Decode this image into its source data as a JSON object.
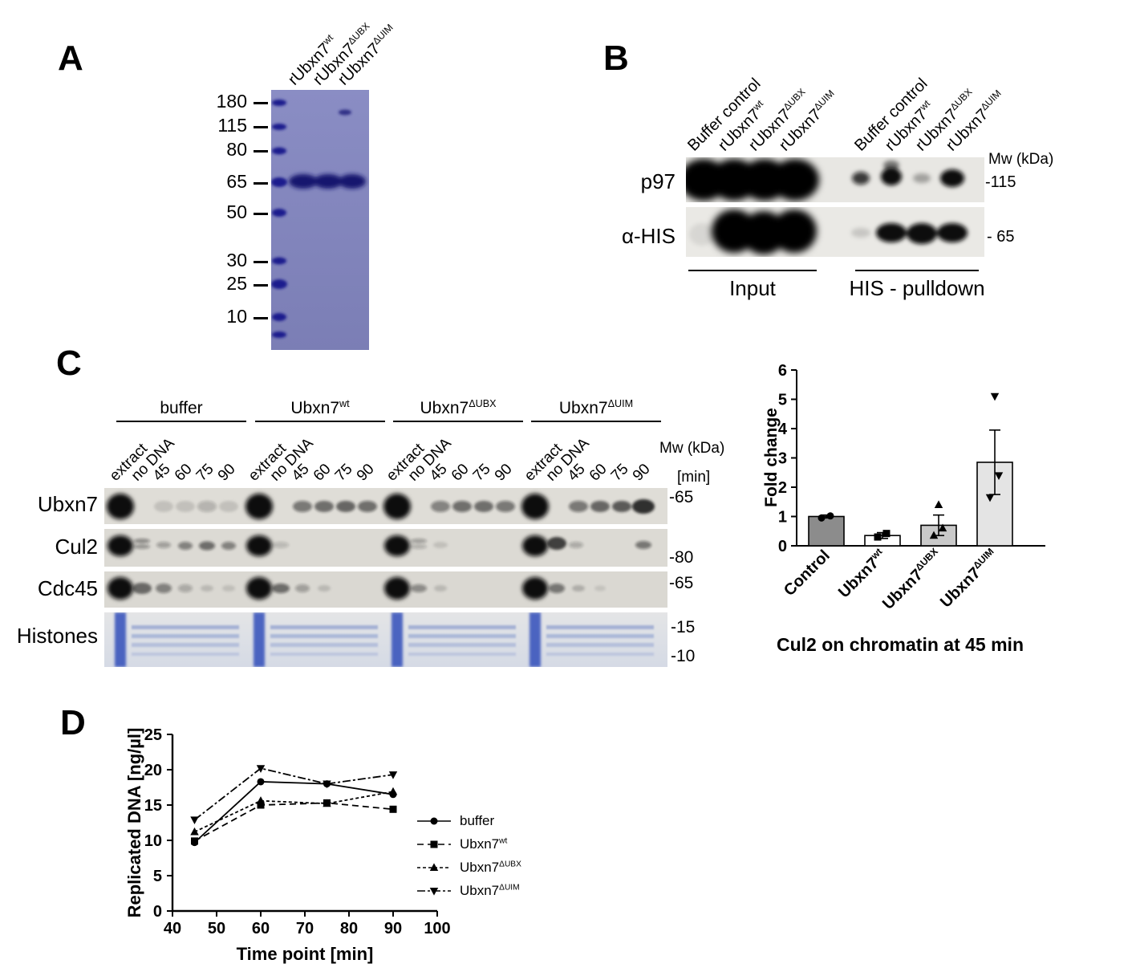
{
  "panelA": {
    "label": "A",
    "mw_markers": [
      "180",
      "115",
      "80",
      "65",
      "50",
      "30",
      "25",
      "10"
    ],
    "lanes": [
      {
        "base": "rUbxn7",
        "sup": "wt"
      },
      {
        "base": "rUbxn7",
        "sup": "ΔUBX"
      },
      {
        "base": "rUbxn7",
        "sup": "ΔUIM"
      }
    ]
  },
  "panelB": {
    "label": "B",
    "lanes": [
      {
        "base": "Buffer control",
        "sup": ""
      },
      {
        "base": "rUbxn7",
        "sup": "wt"
      },
      {
        "base": "rUbxn7",
        "sup": "ΔUBX"
      },
      {
        "base": "rUbxn7",
        "sup": "ΔUIM"
      },
      {
        "base": "Buffer control",
        "sup": ""
      },
      {
        "base": "rUbxn7",
        "sup": "wt"
      },
      {
        "base": "rUbxn7",
        "sup": "ΔUBX"
      },
      {
        "base": "rUbxn7",
        "sup": "ΔUIM"
      }
    ],
    "mw_title": "Mw (kDa)",
    "rows": [
      {
        "label": "p97",
        "mw": "-115"
      },
      {
        "label": "α-HIS",
        "mw": "- 65"
      }
    ],
    "sections": [
      "Input",
      "HIS - pulldown"
    ]
  },
  "panelC": {
    "label": "C",
    "groups": [
      {
        "base": "buffer",
        "sup": ""
      },
      {
        "base": "Ubxn7",
        "sup": "wt"
      },
      {
        "base": "Ubxn7",
        "sup": "ΔUBX"
      },
      {
        "base": "Ubxn7",
        "sup": "ΔUIM"
      }
    ],
    "lane_labels": [
      "extract",
      "no DNA",
      "45",
      "60",
      "75",
      "90"
    ],
    "mw_title": "Mw (kDa)",
    "min_label": "[min]",
    "rows": [
      {
        "label": "Ubxn7",
        "mws": [
          "-65"
        ]
      },
      {
        "label": "Cul2",
        "mws": [
          "-80"
        ]
      },
      {
        "label": "Cdc45",
        "mws": [
          "-65"
        ]
      },
      {
        "label": "Histones",
        "mws": [
          "-15",
          "-10"
        ]
      }
    ]
  },
  "chart_data": [
    {
      "type": "bar",
      "title": "Cul2 on chromatin at 45 min",
      "ylabel": "Fold change",
      "ylim": [
        0,
        6
      ],
      "yticks": [
        0,
        1,
        2,
        3,
        4,
        5,
        6
      ],
      "categories": [
        {
          "base": "Control",
          "sup": ""
        },
        {
          "base": "Ubxn7",
          "sup": "wt"
        },
        {
          "base": "Ubxn7",
          "sup": "ΔUBX"
        },
        {
          "base": "Ubxn7",
          "sup": "ΔUIM"
        }
      ],
      "values": [
        1.0,
        0.35,
        0.7,
        2.85
      ],
      "errors": [
        0.05,
        0.1,
        0.35,
        1.1
      ],
      "points": [
        [
          0.95,
          1.02
        ],
        [
          0.3,
          0.42
        ],
        [
          0.35,
          0.6,
          1.4
        ],
        [
          1.65,
          2.4,
          5.1
        ]
      ],
      "markers": [
        "circle",
        "square",
        "triangle-up",
        "triangle-down"
      ],
      "bar_colors": [
        "#8c8c8c",
        "#ffffff",
        "#c9c9c9",
        "#e4e4e4"
      ],
      "grid": false,
      "legend": "none"
    },
    {
      "type": "line",
      "xlabel": "Time point [min]",
      "ylabel": "Replicated DNA [ng/µl]",
      "xlim": [
        40,
        100
      ],
      "ylim": [
        0,
        25
      ],
      "xticks": [
        40,
        50,
        60,
        70,
        80,
        90,
        100
      ],
      "yticks": [
        0,
        5,
        10,
        15,
        20,
        25
      ],
      "x": [
        45,
        60,
        75,
        90
      ],
      "series": [
        {
          "name": {
            "base": "buffer",
            "sup": ""
          },
          "values": [
            9.7,
            18.3,
            18.0,
            16.5
          ],
          "marker": "circle",
          "dash": ""
        },
        {
          "name": {
            "base": "Ubxn7",
            "sup": "wt"
          },
          "values": [
            9.9,
            15.0,
            15.3,
            14.4
          ],
          "marker": "square",
          "dash": "8,5"
        },
        {
          "name": {
            "base": "Ubxn7",
            "sup": "ΔUBX"
          },
          "values": [
            11.2,
            15.6,
            15.2,
            16.9
          ],
          "marker": "triangle-up",
          "dash": "4,3"
        },
        {
          "name": {
            "base": "Ubxn7",
            "sup": "ΔUIM"
          },
          "values": [
            12.9,
            20.2,
            18.0,
            19.3
          ],
          "marker": "triangle-down",
          "dash": "10,3,3,3"
        }
      ],
      "grid": false,
      "legend": "right"
    }
  ]
}
